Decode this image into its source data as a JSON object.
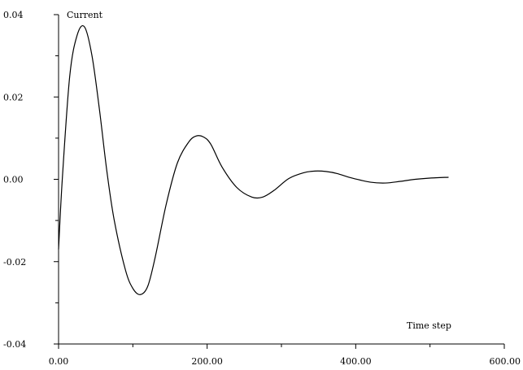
{
  "chart_data": {
    "type": "line",
    "ylabel": "Current",
    "xlabel": "Time step",
    "xlim": [
      0,
      600
    ],
    "ylim": [
      -0.04,
      0.04
    ],
    "grid": false,
    "x_ticks": [
      0,
      200,
      400,
      600
    ],
    "x_tick_labels": [
      "0.00",
      "200.00",
      "400.00",
      "600.00"
    ],
    "y_ticks": [
      -0.04,
      -0.02,
      0.0,
      0.02,
      0.04
    ],
    "y_tick_labels": [
      "-0.04",
      "-0.02",
      "0.00",
      "0.02",
      "0.04"
    ],
    "series": [
      {
        "x": [
          0,
          5,
          15,
          25,
          35,
          45,
          55,
          65,
          75,
          90,
          100,
          110,
          120,
          130,
          145,
          160,
          175,
          185,
          195,
          205,
          220,
          240,
          260,
          275,
          290,
          310,
          330,
          345,
          360,
          375,
          395,
          420,
          440,
          460,
          480,
          500,
          525
        ],
        "y": [
          -0.017,
          0.0,
          0.025,
          0.035,
          0.037,
          0.03,
          0.017,
          0.002,
          -0.01,
          -0.022,
          -0.0265,
          -0.028,
          -0.026,
          -0.019,
          -0.006,
          0.004,
          0.009,
          0.0105,
          0.0103,
          0.0085,
          0.003,
          -0.002,
          -0.0043,
          -0.0043,
          -0.0027,
          0.0002,
          0.0016,
          0.002,
          0.0019,
          0.0014,
          0.0003,
          -0.0007,
          -0.0009,
          -0.0005,
          0.0,
          0.0003,
          0.0005
        ]
      }
    ]
  }
}
